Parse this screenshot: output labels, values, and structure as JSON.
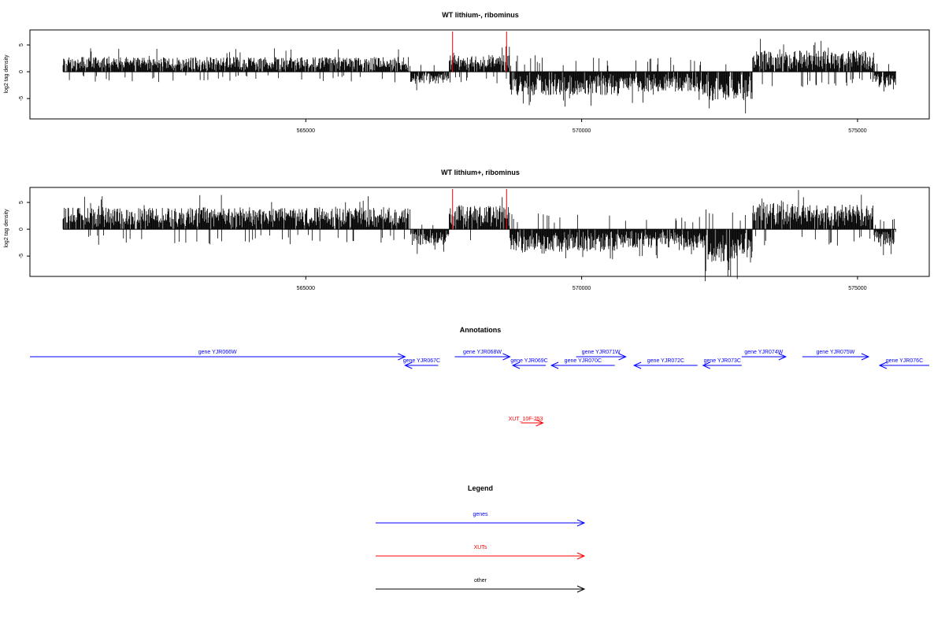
{
  "chart_data": [
    {
      "type": "bar",
      "title": "WT lithium-, ribominus",
      "ylabel": "log2 tag density",
      "xlim": [
        560000,
        576300
      ],
      "ylim": [
        -8.8,
        7.8
      ],
      "xticks": [
        565000,
        570000,
        575000
      ],
      "yticks": [
        -5,
        0,
        5
      ],
      "profile": [
        {
          "start": 560600,
          "end": 566900,
          "strand": "+",
          "level": 2.2
        },
        {
          "start": 566900,
          "end": 567600,
          "strand": "-",
          "level": 1.8
        },
        {
          "start": 567600,
          "end": 568700,
          "strand": "+",
          "level": 2.5
        },
        {
          "start": 568700,
          "end": 570700,
          "strand": "-",
          "level": 3.6
        },
        {
          "start": 570700,
          "end": 572200,
          "strand": "-",
          "level": 3.0
        },
        {
          "start": 572200,
          "end": 573100,
          "strand": "-",
          "level": 4.4
        },
        {
          "start": 573100,
          "end": 575300,
          "strand": "+",
          "level": 3.2
        },
        {
          "start": 575300,
          "end": 575700,
          "strand": "-",
          "level": 2.2
        }
      ],
      "highlights": [
        {
          "x": 567660,
          "ymin": 0,
          "ymax": 7.5,
          "color": "#ff0000"
        },
        {
          "x": 568640,
          "ymin": 0,
          "ymax": 7.5,
          "color": "#ff0000"
        }
      ]
    },
    {
      "type": "bar",
      "title": "WT lithium+, ribominus",
      "ylabel": "log2 tag density",
      "xlim": [
        560000,
        576300
      ],
      "ylim": [
        -8.8,
        7.8
      ],
      "xticks": [
        565000,
        570000,
        575000
      ],
      "yticks": [
        -5,
        0,
        5
      ],
      "profile": [
        {
          "start": 560600,
          "end": 566900,
          "strand": "+",
          "level": 3.3
        },
        {
          "start": 566900,
          "end": 567600,
          "strand": "-",
          "level": 2.4
        },
        {
          "start": 567600,
          "end": 568700,
          "strand": "+",
          "level": 3.6
        },
        {
          "start": 568700,
          "end": 570700,
          "strand": "-",
          "level": 3.4
        },
        {
          "start": 570700,
          "end": 572200,
          "strand": "-",
          "level": 2.8
        },
        {
          "start": 572200,
          "end": 573100,
          "strand": "-",
          "level": 5.0
        },
        {
          "start": 573100,
          "end": 575300,
          "strand": "+",
          "level": 3.8
        },
        {
          "start": 575300,
          "end": 575700,
          "strand": "-",
          "level": 2.6
        }
      ],
      "highlights": [
        {
          "x": 567660,
          "ymin": 0,
          "ymax": 7.5,
          "color": "#ff0000"
        },
        {
          "x": 568640,
          "ymin": 0,
          "ymax": 7.5,
          "color": "#ff0000"
        }
      ]
    }
  ],
  "annotations": {
    "title": "Annotations",
    "genes": [
      {
        "label": "gene YJR066W",
        "start": 560000,
        "end": 566800,
        "strand": "+",
        "row": 0
      },
      {
        "label": "gene YJR067C",
        "start": 566800,
        "end": 567400,
        "strand": "-",
        "row": 1
      },
      {
        "label": "gene YJR068W",
        "start": 567700,
        "end": 568700,
        "strand": "+",
        "row": 0
      },
      {
        "label": "gene YJR069C",
        "start": 568750,
        "end": 569350,
        "strand": "-",
        "row": 1
      },
      {
        "label": "gene YJR070C",
        "start": 569450,
        "end": 570600,
        "strand": "-",
        "row": 1
      },
      {
        "label": "gene YJR071W",
        "start": 569900,
        "end": 570800,
        "strand": "+",
        "row": 0
      },
      {
        "label": "gene YJR072C",
        "start": 570950,
        "end": 572100,
        "strand": "-",
        "row": 1
      },
      {
        "label": "gene YJR073C",
        "start": 572200,
        "end": 572900,
        "strand": "-",
        "row": 1
      },
      {
        "label": "gene YJR074W",
        "start": 572900,
        "end": 573700,
        "strand": "+",
        "row": 0
      },
      {
        "label": "gene YJR075W",
        "start": 574000,
        "end": 575200,
        "strand": "+",
        "row": 0
      },
      {
        "label": "gene YJR076C",
        "start": 575400,
        "end": 576300,
        "strand": "-",
        "row": 1
      }
    ],
    "xuts": [
      {
        "label": "XUT_10F-253",
        "start": 568900,
        "end": 569300,
        "strand": "+"
      }
    ]
  },
  "legend": {
    "title": "Legend",
    "items": [
      {
        "label": "genes",
        "color": "#0000ff"
      },
      {
        "label": "XUTs",
        "color": "#ff0000"
      },
      {
        "label": "other",
        "color": "#000000"
      }
    ]
  }
}
